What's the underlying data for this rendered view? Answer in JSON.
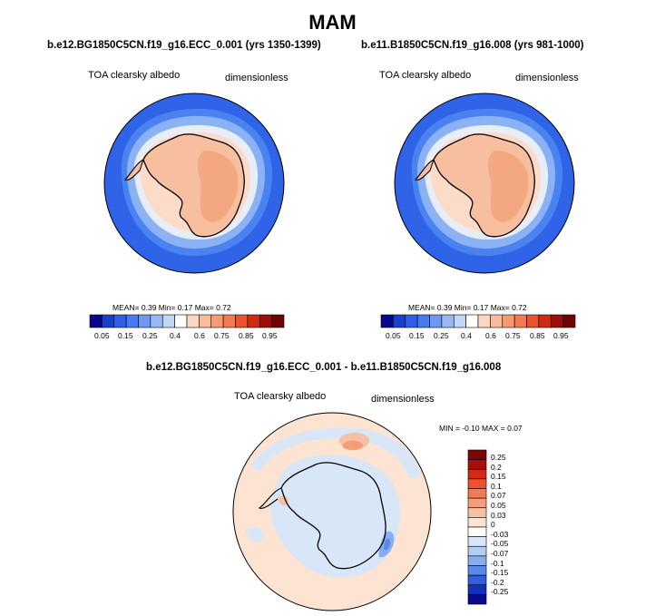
{
  "title": "MAM",
  "panel_left": {
    "case": "b.e12.BG1850C5CN.f19_g16.ECC_0.001 (yrs 1350-1399)",
    "variable": "TOA clearsky albedo",
    "units": "dimensionless",
    "stats": "MEAN=  0.39  Min=  0.17  Max=  0.72"
  },
  "panel_right": {
    "case": "b.e11.B1850C5CN.f19_g16.008 (yrs 981-1000)",
    "variable": "TOA clearsky albedo",
    "units": "dimensionless",
    "stats": "MEAN=  0.39  Min=  0.17  Max=  0.72"
  },
  "panel_diff": {
    "case": "b.e12.BG1850C5CN.f19_g16.ECC_0.001 - b.e11.B1850C5CN.f19_g16.008",
    "variable": "TOA clearsky albedo",
    "units": "dimensionless",
    "stats": "MIN =  -0.10 MAX =  0.07"
  },
  "colorbar_abs": {
    "labels": [
      "0.05",
      "0.15",
      "0.25",
      "0.4",
      "0.6",
      "0.75",
      "0.85",
      "0.95"
    ],
    "colors": [
      "#08088c",
      "#1a3fcf",
      "#2f5fe6",
      "#4a7af0",
      "#6e98f2",
      "#98b8f4",
      "#c2d6f6",
      "#ffffff",
      "#fcd8c4",
      "#f9bc9c",
      "#f59a74",
      "#f27a54",
      "#ea5230",
      "#d02a14",
      "#9e0e0a",
      "#6e0505"
    ]
  },
  "colorbar_diff": {
    "labels": [
      "0.25",
      "0.2",
      "0.15",
      "0.1",
      "0.07",
      "0.05",
      "0.03",
      "0",
      "-0.03",
      "-0.05",
      "-0.07",
      "-0.1",
      "-0.15",
      "-0.2",
      "-0.25"
    ],
    "colors": [
      "#7a0707",
      "#a80f0b",
      "#d22a14",
      "#ec5230",
      "#f27a54",
      "#f59c78",
      "#f8c0a2",
      "#fde3d2",
      "#ffffff",
      "#d8e6f8",
      "#b0cdf4",
      "#86aef0",
      "#5a8ae8",
      "#2f5fe0",
      "#1530b8",
      "#0a0a8c"
    ]
  }
}
